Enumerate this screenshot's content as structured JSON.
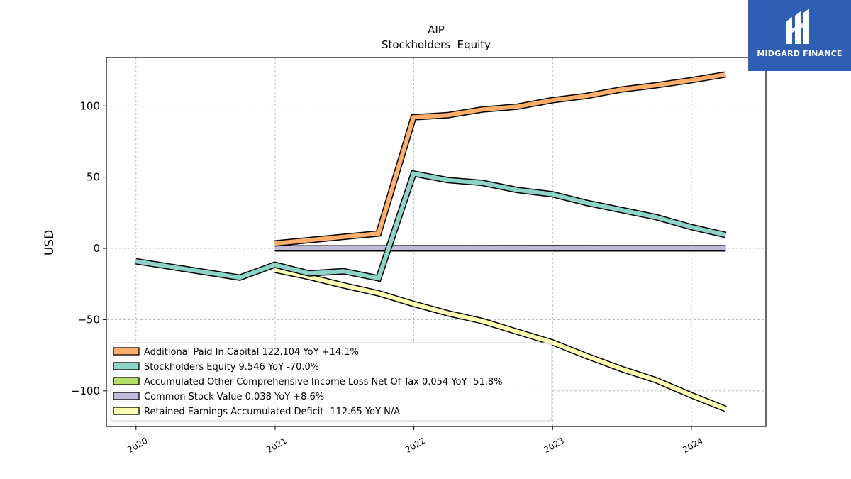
{
  "brand": {
    "name": "MIDGARD FINANCE",
    "bg": "#2f5fb3"
  },
  "chart_data": {
    "type": "line",
    "title": "AIP",
    "subtitle": "Stockholders  Equity",
    "ylabel": "USD",
    "xlabel": "",
    "x_ticks": [
      "2020",
      "2021",
      "2022",
      "2023",
      "2024"
    ],
    "y_ticks": [
      "100",
      "50",
      "0",
      "−50",
      "−100"
    ],
    "xlim": [
      "2019-10-15",
      "2024-07-15"
    ],
    "ylim": [
      -125,
      134
    ],
    "grid": true,
    "legend_position": "lower-left",
    "series": [
      {
        "name": "Additional Paid In Capital  122.104 YoY +14.1%",
        "color": "#fdae6b",
        "points": [
          [
            "2020-12-31",
            3.5
          ],
          [
            "2021-09-30",
            10.5
          ],
          [
            "2021-12-31",
            92.0
          ],
          [
            "2022-03-31",
            93.5
          ],
          [
            "2022-06-30",
            97.5
          ],
          [
            "2022-09-30",
            99.5
          ],
          [
            "2022-12-31",
            104.0
          ],
          [
            "2023-03-31",
            107.0
          ],
          [
            "2023-06-30",
            111.5
          ],
          [
            "2023-09-30",
            114.5
          ],
          [
            "2023-12-31",
            118.0
          ],
          [
            "2024-03-31",
            122.1
          ]
        ]
      },
      {
        "name": "Stockholders Equity  9.546 YoY -70.0%",
        "color": "#8dd3c7",
        "points": [
          [
            "2019-12-31",
            -9.0
          ],
          [
            "2020-09-30",
            -20.5
          ],
          [
            "2020-12-31",
            -11.5
          ],
          [
            "2021-03-31",
            -17.5
          ],
          [
            "2021-06-30",
            -16.0
          ],
          [
            "2021-09-30",
            -21.0
          ],
          [
            "2021-12-31",
            52.5
          ],
          [
            "2022-03-31",
            48.0
          ],
          [
            "2022-06-30",
            46.0
          ],
          [
            "2022-09-30",
            41.0
          ],
          [
            "2022-12-31",
            38.0
          ],
          [
            "2023-03-31",
            32.0
          ],
          [
            "2023-06-30",
            27.0
          ],
          [
            "2023-09-30",
            22.0
          ],
          [
            "2023-12-31",
            15.0
          ],
          [
            "2024-03-31",
            9.5
          ]
        ]
      },
      {
        "name": "Accumulated Other Comprehensive Income Loss Net Of Tax  0.054 YoY -51.8%",
        "color": "#b3de69",
        "points": [
          [
            "2020-12-31",
            0.0
          ],
          [
            "2021-12-31",
            0.05
          ],
          [
            "2022-12-31",
            0.1
          ],
          [
            "2024-03-31",
            0.054
          ]
        ]
      },
      {
        "name": "Common Stock Value  0.038 YoY +8.6%",
        "color": "#bebada",
        "points": [
          [
            "2020-12-31",
            0.02
          ],
          [
            "2021-12-31",
            0.03
          ],
          [
            "2022-12-31",
            0.035
          ],
          [
            "2024-03-31",
            0.038
          ]
        ]
      },
      {
        "name": "Retained Earnings Accumulated Deficit  -112.65 YoY N/A",
        "color": "#ffffb3",
        "points": [
          [
            "2020-12-31",
            -15.0
          ],
          [
            "2021-03-31",
            -20.0
          ],
          [
            "2021-06-30",
            -26.0
          ],
          [
            "2021-09-30",
            -31.5
          ],
          [
            "2021-12-31",
            -39.0
          ],
          [
            "2022-03-31",
            -45.5
          ],
          [
            "2022-06-30",
            -51.0
          ],
          [
            "2022-09-30",
            -58.5
          ],
          [
            "2022-12-31",
            -66.0
          ],
          [
            "2023-03-31",
            -75.5
          ],
          [
            "2023-06-30",
            -84.5
          ],
          [
            "2023-09-30",
            -92.5
          ],
          [
            "2023-12-31",
            -103.0
          ],
          [
            "2024-03-31",
            -112.65
          ]
        ]
      }
    ]
  }
}
